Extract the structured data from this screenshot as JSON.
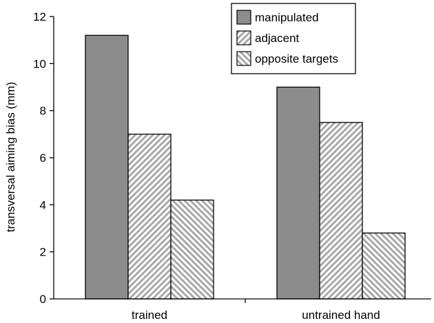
{
  "chart_data": {
    "type": "bar",
    "title": "",
    "xlabel": "",
    "ylabel": "transversal aiming bias (mm)",
    "categories": [
      "trained",
      "untrained hand"
    ],
    "series": [
      {
        "name": "manipulated",
        "values": [
          11.2,
          9.0
        ],
        "fill": "solid",
        "color": "#8c8c8c"
      },
      {
        "name": "adjacent",
        "values": [
          7.0,
          7.5
        ],
        "fill": "hatch-down",
        "color": "#8c8c8c"
      },
      {
        "name": "opposite targets",
        "values": [
          4.2,
          2.8
        ],
        "fill": "hatch-up",
        "color": "#8c8c8c"
      }
    ],
    "ylim": [
      0,
      12
    ],
    "yticks": [
      0,
      2,
      4,
      6,
      8,
      10,
      12
    ],
    "grid": false,
    "legend_position": "top-right"
  }
}
